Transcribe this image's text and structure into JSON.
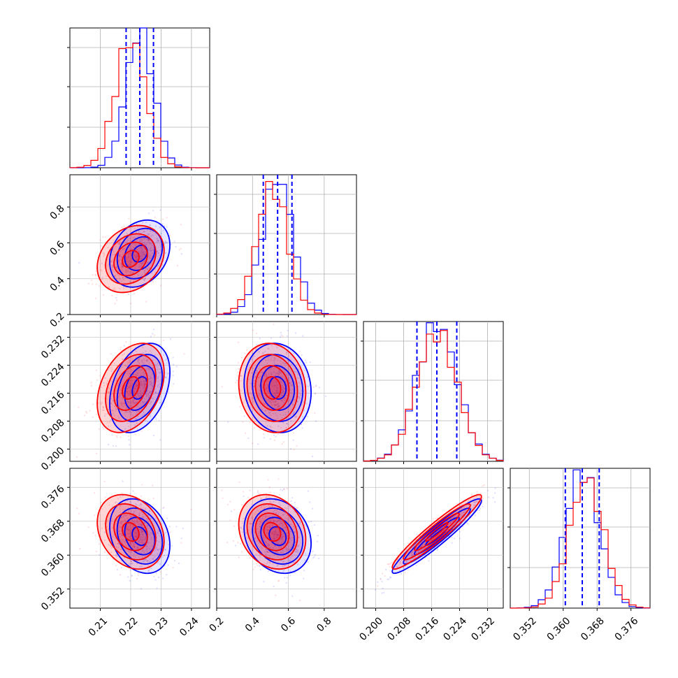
{
  "chart_data": {
    "type": "corner",
    "parameters": [
      {
        "lim": [
          0.2,
          0.246
        ],
        "ticks": [
          0.21,
          0.22,
          0.23,
          0.24
        ],
        "tick_labels": [
          "0.21",
          "0.22",
          "0.23",
          "0.24"
        ],
        "quantiles_blue": [
          0.2185,
          0.223,
          0.2275
        ],
        "mode_blue": 0.223,
        "mode_red": 0.22,
        "sd_blue": 0.0045,
        "sd_red": 0.005
      },
      {
        "lim": [
          0.2,
          0.98
        ],
        "ticks": [
          0.2,
          0.4,
          0.6,
          0.8
        ],
        "tick_labels": [
          "0.2",
          "0.4",
          "0.6",
          "0.8"
        ],
        "quantiles_blue": [
          0.46,
          0.54,
          0.62
        ],
        "mode_blue": 0.54,
        "mode_red": 0.51,
        "sd_blue": 0.085,
        "sd_red": 0.085
      },
      {
        "lim": [
          0.1965,
          0.2365
        ],
        "ticks": [
          0.2,
          0.208,
          0.216,
          0.224,
          0.232
        ],
        "tick_labels": [
          "0.200",
          "0.208",
          "0.216",
          "0.224",
          "0.232"
        ],
        "quantiles_blue": [
          0.2118,
          0.2175,
          0.2232
        ],
        "mode_blue": 0.2175,
        "mode_red": 0.2175,
        "sd_blue": 0.0058,
        "sd_red": 0.0058
      },
      {
        "lim": [
          0.3475,
          0.3805
        ],
        "ticks": [
          0.352,
          0.36,
          0.368,
          0.376
        ],
        "tick_labels": [
          "0.352",
          "0.360",
          "0.368",
          "0.376"
        ],
        "quantiles_blue": [
          0.3605,
          0.3645,
          0.3685
        ],
        "mode_blue": 0.3645,
        "mode_red": 0.3655,
        "sd_blue": 0.004,
        "sd_red": 0.004
      }
    ],
    "correlations": {
      "1,0": 0.25,
      "2,0": 0.35,
      "2,1": -0.1,
      "3,0": -0.25,
      "3,1": -0.2,
      "3,2": 0.95
    },
    "series": [
      {
        "name": "",
        "color": "#0000ff"
      },
      {
        "name": "",
        "color": "#ff0000"
      }
    ],
    "levels_sigma": [
      0.5,
      1.0,
      1.5,
      2.0
    ],
    "grid": true,
    "quantile_line_style": "dashed"
  }
}
